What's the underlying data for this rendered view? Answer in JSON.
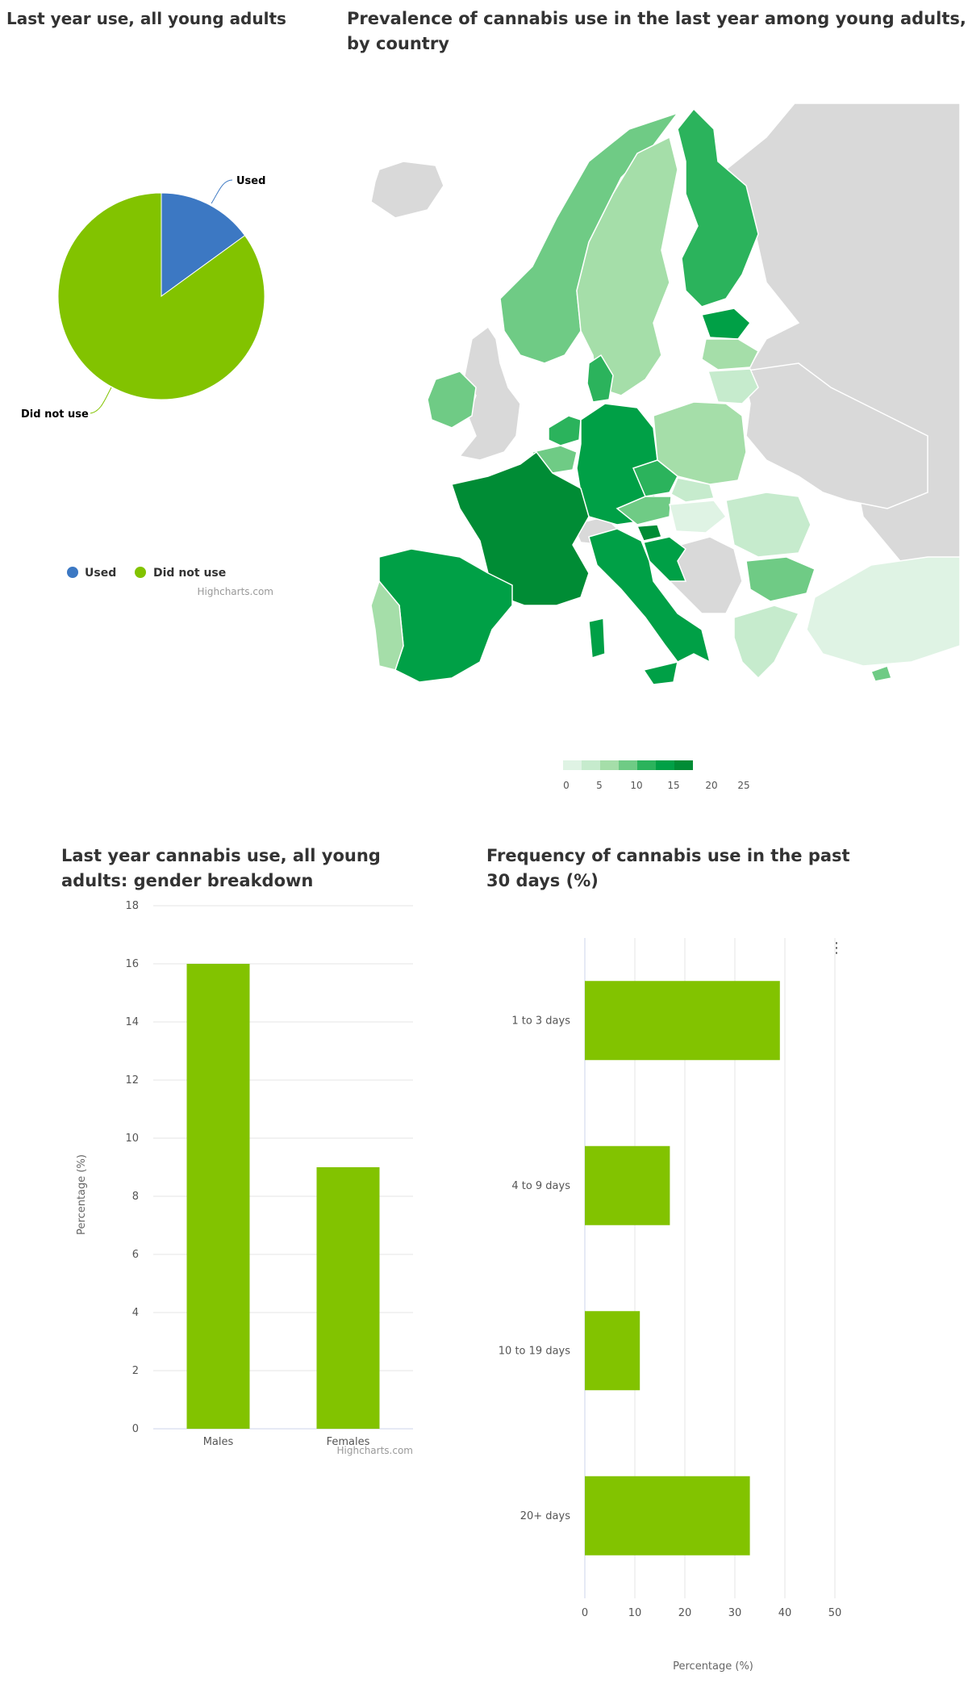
{
  "pie": {
    "title": "Last year use, all young adults",
    "credit": "Highcharts.com",
    "legend": [
      "Used",
      "Did not use"
    ]
  },
  "map": {
    "title": "Prevalence of cannabis use in the last year among young adults, by country",
    "legend_ticks": [
      "0",
      "5",
      "10",
      "15",
      "20",
      "25"
    ],
    "colors": [
      "#dff3e4",
      "#c6ebcd",
      "#a5dea9",
      "#6fcb85",
      "#2bb35c",
      "#00a046",
      "#008c35"
    ]
  },
  "gender": {
    "title": "Last year cannabis use, all young adults: gender breakdown",
    "ylabel": "Percentage (%)",
    "credit": "Highcharts.com"
  },
  "freq": {
    "title": "Frequency of cannabis use in the past 30 days (%)",
    "xlabel": "Percentage (%)",
    "menu_icon": "⋮"
  },
  "chart_data": [
    {
      "type": "pie",
      "title": "Last year use, all young adults",
      "categories": [
        "Used",
        "Did not use"
      ],
      "values": [
        15,
        85
      ],
      "colors": [
        "#3c78c3",
        "#82c300"
      ],
      "legend": "bottom-left"
    },
    {
      "type": "bar",
      "title": "Last year cannabis use, all young adults: gender breakdown",
      "categories": [
        "Males",
        "Females"
      ],
      "values": [
        16,
        9
      ],
      "ylabel": "Percentage (%)",
      "ylim": [
        0,
        18
      ],
      "yticks": [
        "0",
        "2",
        "4",
        "6",
        "8",
        "10",
        "12",
        "14",
        "16",
        "18"
      ],
      "color": "#82c300",
      "grid": true
    },
    {
      "type": "bar",
      "orientation": "horizontal",
      "title": "Frequency of cannabis use in the past 30 days (%)",
      "categories": [
        "1 to 3 days",
        "4 to 9 days",
        "10 to 19 days",
        "20+ days"
      ],
      "values": [
        39,
        17,
        11,
        33
      ],
      "xlabel": "Percentage (%)",
      "xlim": [
        0,
        50
      ],
      "xticks": [
        "0",
        "10",
        "20",
        "30",
        "40",
        "50"
      ],
      "color": "#82c300",
      "grid": true
    }
  ]
}
